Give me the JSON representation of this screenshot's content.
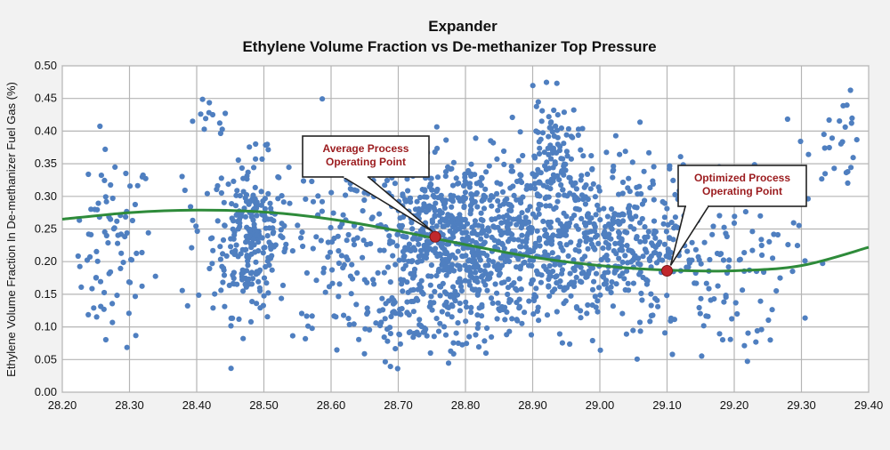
{
  "chart_data": {
    "type": "scatter",
    "title": "Expander",
    "subtitle": "Ethylene Volume Fraction vs De-methanizer Top Pressure",
    "xlabel": "",
    "ylabel": "Ethylene Volume Fraction In De-methanizer Fuel Gas (%)",
    "xlim": [
      28.2,
      29.4
    ],
    "ylim": [
      0.0,
      0.5
    ],
    "x_ticks": [
      "28.20",
      "28.30",
      "28.40",
      "28.50",
      "28.60",
      "28.70",
      "28.80",
      "28.90",
      "29.00",
      "29.10",
      "29.20",
      "29.30",
      "29.40"
    ],
    "y_ticks": [
      "0.00",
      "0.05",
      "0.10",
      "0.15",
      "0.20",
      "0.25",
      "0.30",
      "0.35",
      "0.40",
      "0.45",
      "0.50"
    ],
    "grid": true,
    "point_color": "#4f7fc0",
    "curve_color": "#2e8b3a",
    "marker_color": "#c0282d",
    "clusters": [
      {
        "x": 28.275,
        "y": 0.22,
        "sx": 0.03,
        "sy": 0.075,
        "n": 85
      },
      {
        "x": 28.42,
        "y": 0.41,
        "sx": 0.015,
        "sy": 0.02,
        "n": 12
      },
      {
        "x": 28.39,
        "y": 0.2,
        "sx": 0.01,
        "sy": 0.06,
        "n": 8
      },
      {
        "x": 28.48,
        "y": 0.24,
        "sx": 0.028,
        "sy": 0.06,
        "n": 260
      },
      {
        "x": 28.6,
        "y": 0.22,
        "sx": 0.03,
        "sy": 0.07,
        "n": 45
      },
      {
        "x": 28.79,
        "y": 0.23,
        "sx": 0.08,
        "sy": 0.065,
        "n": 850
      },
      {
        "x": 28.72,
        "y": 0.1,
        "sx": 0.06,
        "sy": 0.03,
        "n": 70
      },
      {
        "x": 28.93,
        "y": 0.37,
        "sx": 0.02,
        "sy": 0.04,
        "n": 90
      },
      {
        "x": 28.98,
        "y": 0.23,
        "sx": 0.07,
        "sy": 0.065,
        "n": 420
      },
      {
        "x": 29.08,
        "y": 0.24,
        "sx": 0.04,
        "sy": 0.07,
        "n": 90
      },
      {
        "x": 29.2,
        "y": 0.2,
        "sx": 0.05,
        "sy": 0.08,
        "n": 100
      },
      {
        "x": 29.36,
        "y": 0.37,
        "sx": 0.025,
        "sy": 0.045,
        "n": 30
      }
    ],
    "fit_curve": {
      "name": "",
      "x": [
        28.2,
        28.3,
        28.4,
        28.5,
        28.6,
        28.7,
        28.8,
        28.9,
        29.0,
        29.1,
        29.2,
        29.3,
        29.4
      ],
      "y": [
        0.265,
        0.275,
        0.279,
        0.276,
        0.265,
        0.247,
        0.226,
        0.207,
        0.194,
        0.187,
        0.186,
        0.194,
        0.222
      ]
    },
    "annotations": [
      {
        "x": 28.755,
        "y": 0.238,
        "lines": [
          "Average Process",
          "Operating Point"
        ]
      },
      {
        "x": 29.1,
        "y": 0.186,
        "lines": [
          "Optimized Process",
          "Operating Point"
        ]
      }
    ]
  }
}
